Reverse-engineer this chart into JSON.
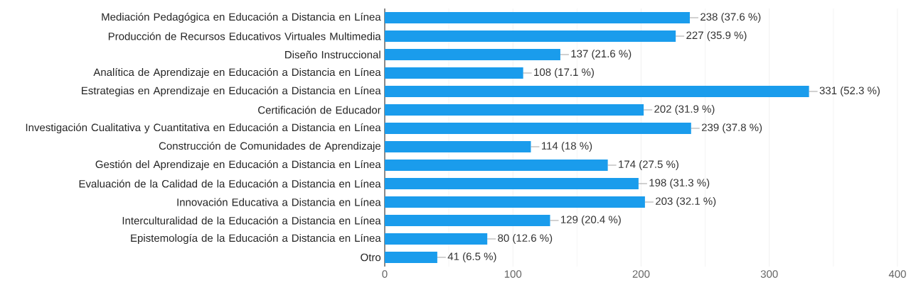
{
  "chart_data": {
    "type": "bar",
    "orientation": "horizontal",
    "categories": [
      "Mediación Pedagógica en Educación a Distancia en Línea",
      "Producción de Recursos Educativos Virtuales Multimedia",
      "Diseño Instruccional",
      "Analítica de Aprendizaje en Educación a Distancia en Línea",
      "Estrategias en Aprendizaje en Educación a Distancia en Línea",
      "Certificación de Educador",
      "Investigación Cualitativa y Cuantitativa en Educación a Distancia en Línea",
      "Construcción de Comunidades de Aprendizaje",
      "Gestión del Aprendizaje en Educación a Distancia en Línea",
      "Evaluación de la Calidad de la Educación a Distancia en Línea",
      "Innovación Educativa a Distancia en Línea",
      "Interculturalidad de la Educación a Distancia en Línea",
      "Epistemología de la Educación a Distancia en Línea",
      "Otro"
    ],
    "values": [
      238,
      227,
      137,
      108,
      331,
      202,
      239,
      114,
      174,
      198,
      203,
      129,
      80,
      41
    ],
    "value_labels": [
      "238 (37.6 %)",
      "227 (35.9 %)",
      "137 (21.6 %)",
      "108 (17.1 %)",
      "331 (52.3 %)",
      "202 (31.9 %)",
      "239 (37.8 %)",
      "114 (18 %)",
      "174 (27.5 %)",
      "198 (31.3 %)",
      "203 (32.1 %)",
      "129 (20.4 %)",
      "80 (12.6 %)",
      "41 (6.5 %)"
    ],
    "color": "#1a9cec",
    "xlim": [
      0,
      400
    ],
    "xticks": [
      0,
      100,
      200,
      300,
      400
    ],
    "grid": "x"
  }
}
